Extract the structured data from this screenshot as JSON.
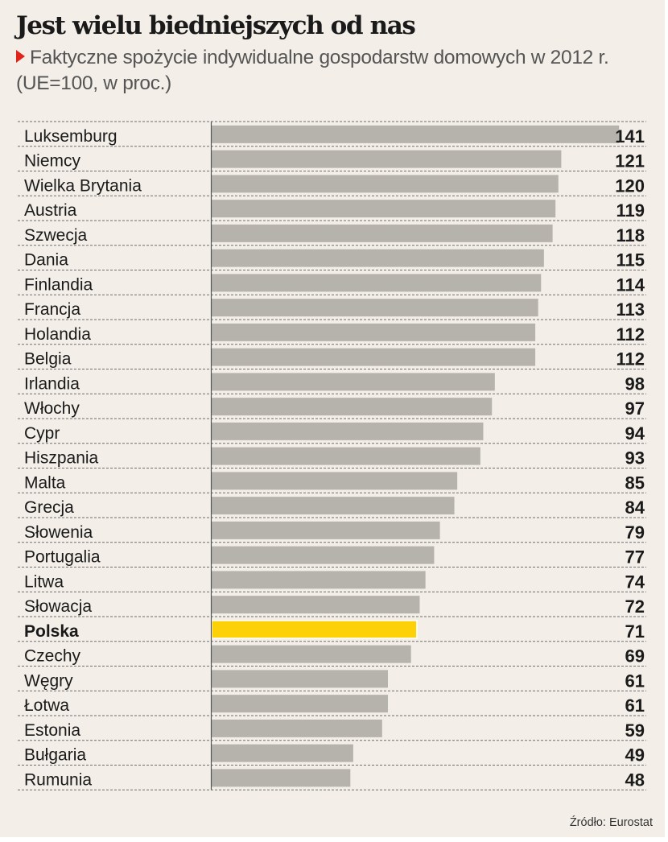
{
  "header": {
    "title": "Jest wielu biedniejszych od nas",
    "subtitle": "Faktyczne spożycie indywidualne gospodarstw domowych w 2012 r. (UE=100, w proc.)"
  },
  "colors": {
    "bar": "#b6b3ad",
    "highlight": "#fcd107",
    "highlight_outline": "#ffffff",
    "accent_marker": "#e2231a",
    "background": "#f3efe8",
    "text": "#1a1a1a"
  },
  "footer": {
    "source": "Źródło: Eurostat"
  },
  "chart_data": {
    "type": "bar",
    "orientation": "horizontal",
    "title": "Jest wielu biedniejszych od nas",
    "subtitle": "Faktyczne spożycie indywidualne gospodarstw domowych w 2012 r. (UE=100, w proc.)",
    "xlabel": "",
    "ylabel": "",
    "xlim": [
      0,
      141
    ],
    "grid": "dashed row separators",
    "legend": "none",
    "highlight": "Polska",
    "categories": [
      "Luksemburg",
      "Niemcy",
      "Wielka Brytania",
      "Austria",
      "Szwecja",
      "Dania",
      "Finlandia",
      "Francja",
      "Holandia",
      "Belgia",
      "Irlandia",
      "Włochy",
      "Cypr",
      "Hiszpania",
      "Malta",
      "Grecja",
      "Słowenia",
      "Portugalia",
      "Litwa",
      "Słowacja",
      "Polska",
      "Czechy",
      "Węgry",
      "Łotwa",
      "Estonia",
      "Bułgaria",
      "Rumunia"
    ],
    "values": [
      141,
      121,
      120,
      119,
      118,
      115,
      114,
      113,
      112,
      112,
      98,
      97,
      94,
      93,
      85,
      84,
      79,
      77,
      74,
      72,
      71,
      69,
      61,
      61,
      59,
      49,
      48
    ],
    "source": "Źródło: Eurostat"
  }
}
